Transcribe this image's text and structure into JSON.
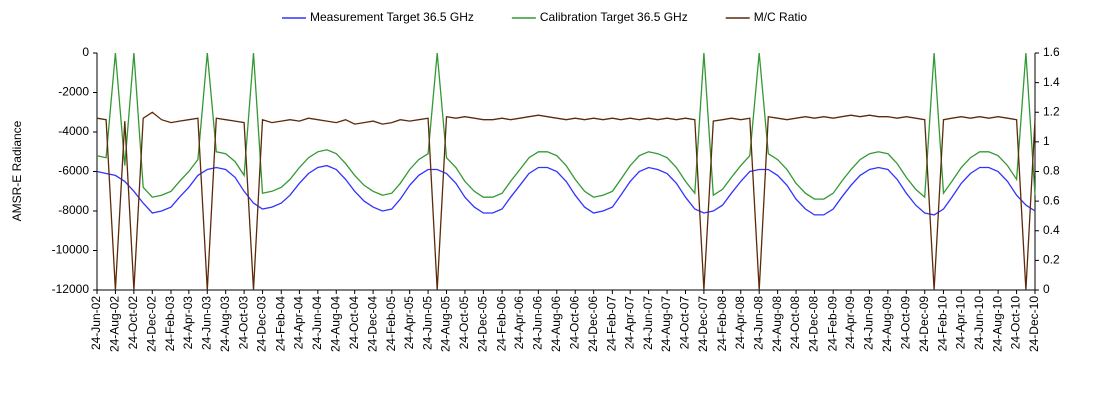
{
  "chart_data": {
    "type": "line",
    "ylabel": "AMSR-E Radiance",
    "x": [
      "2002-06-24",
      "2002-07-24",
      "2002-08-24",
      "2002-09-24",
      "2002-10-24",
      "2002-11-24",
      "2002-12-24",
      "2003-01-24",
      "2003-02-24",
      "2003-03-24",
      "2003-04-24",
      "2003-05-24",
      "2003-06-24",
      "2003-07-24",
      "2003-08-24",
      "2003-09-24",
      "2003-10-24",
      "2003-11-24",
      "2003-12-24",
      "2004-01-24",
      "2004-02-24",
      "2004-03-24",
      "2004-04-24",
      "2004-05-24",
      "2004-06-24",
      "2004-07-24",
      "2004-08-24",
      "2004-09-24",
      "2004-10-24",
      "2004-11-24",
      "2004-12-24",
      "2005-01-24",
      "2005-02-24",
      "2005-03-24",
      "2005-04-24",
      "2005-05-24",
      "2005-06-24",
      "2005-07-24",
      "2005-08-24",
      "2005-09-24",
      "2005-10-24",
      "2005-11-24",
      "2005-12-24",
      "2006-01-24",
      "2006-02-24",
      "2006-03-24",
      "2006-04-24",
      "2006-05-24",
      "2006-06-24",
      "2006-07-24",
      "2006-08-24",
      "2006-09-24",
      "2006-10-24",
      "2006-11-24",
      "2006-12-24",
      "2007-01-24",
      "2007-02-24",
      "2007-03-24",
      "2007-04-24",
      "2007-05-24",
      "2007-06-24",
      "2007-07-24",
      "2007-08-24",
      "2007-09-24",
      "2007-10-24",
      "2007-11-24",
      "2007-12-24",
      "2008-01-24",
      "2008-02-24",
      "2008-03-24",
      "2008-04-24",
      "2008-05-24",
      "2008-06-24",
      "2008-07-24",
      "2008-08-24",
      "2008-09-24",
      "2008-10-24",
      "2008-11-24",
      "2008-12-24",
      "2009-01-24",
      "2009-02-24",
      "2009-03-24",
      "2009-04-24",
      "2009-05-24",
      "2009-06-24",
      "2009-07-24",
      "2009-08-24",
      "2009-09-24",
      "2009-10-24",
      "2009-11-24",
      "2009-12-24",
      "2010-01-24",
      "2010-02-24",
      "2010-03-24",
      "2010-04-24",
      "2010-05-24",
      "2010-06-24",
      "2010-07-24",
      "2010-08-24",
      "2010-09-24",
      "2010-10-24",
      "2010-11-24",
      "2010-12-24"
    ],
    "series": [
      {
        "name": "Measurement Target 36.5 GHz",
        "color": "#3333ff",
        "values": [
          -6000,
          -6100,
          -6200,
          -6500,
          -7000,
          -7600,
          -8100,
          -8000,
          -7800,
          -7300,
          -6800,
          -6200,
          -5900,
          -5800,
          -5900,
          -6300,
          -7000,
          -7600,
          -7900,
          -7800,
          -7600,
          -7200,
          -6600,
          -6100,
          -5800,
          -5700,
          -5900,
          -6400,
          -7000,
          -7500,
          -7800,
          -8000,
          -7900,
          -7400,
          -6700,
          -6200,
          -5900,
          -5900,
          -6100,
          -6600,
          -7300,
          -7800,
          -8100,
          -8100,
          -7900,
          -7300,
          -6700,
          -6100,
          -5800,
          -5800,
          -6000,
          -6500,
          -7200,
          -7800,
          -8100,
          -8000,
          -7800,
          -7200,
          -6500,
          -6000,
          -5800,
          -5900,
          -6100,
          -6600,
          -7300,
          -7900,
          -8100,
          -8000,
          -7700,
          -7100,
          -6500,
          -6000,
          -5900,
          -5900,
          -6200,
          -6700,
          -7400,
          -7900,
          -8200,
          -8200,
          -7900,
          -7300,
          -6700,
          -6200,
          -5900,
          -5800,
          -5900,
          -6400,
          -7100,
          -7700,
          -8100,
          -8200,
          -7900,
          -7300,
          -6600,
          -6100,
          -5800,
          -5800,
          -6000,
          -6500,
          -7200,
          -7700,
          -8000
        ]
      },
      {
        "name": "Calibration Target 36.5 GHz",
        "color": "#339933",
        "values": [
          -5200,
          -5300,
          0,
          -5700,
          0,
          -6800,
          -7300,
          -7200,
          -7000,
          -6500,
          -6000,
          -5400,
          0,
          -5000,
          -5100,
          -5500,
          -6200,
          0,
          -7100,
          -7000,
          -6800,
          -6400,
          -5800,
          -5300,
          -5000,
          -4900,
          -5100,
          -5600,
          -6200,
          -6700,
          -7000,
          -7200,
          -7100,
          -6600,
          -5900,
          -5400,
          -5100,
          0,
          -5300,
          -5800,
          -6500,
          -7000,
          -7300,
          -7300,
          -7100,
          -6500,
          -5900,
          -5300,
          -5000,
          -5000,
          -5200,
          -5700,
          -6400,
          -7000,
          -7300,
          -7200,
          -7000,
          -6400,
          -5700,
          -5200,
          -5000,
          -5100,
          -5300,
          -5800,
          -6500,
          -7100,
          0,
          -7200,
          -6900,
          -6300,
          -5700,
          -5200,
          0,
          -5100,
          -5400,
          -5900,
          -6600,
          -7100,
          -7400,
          -7400,
          -7100,
          -6500,
          -5900,
          -5400,
          -5100,
          -5000,
          -5100,
          -5600,
          -6300,
          -6900,
          -7300,
          0,
          -7100,
          -6500,
          -5800,
          -5300,
          -5000,
          -5000,
          -5200,
          -5700,
          -6400,
          0,
          -7200
        ]
      },
      {
        "name": "M/C Ratio",
        "color": "#5c2a0a",
        "axis": "y2",
        "values": [
          1.16,
          1.15,
          0,
          1.14,
          0,
          1.16,
          1.2,
          1.15,
          1.13,
          1.14,
          1.15,
          1.16,
          0,
          1.16,
          1.15,
          1.14,
          1.13,
          0,
          1.15,
          1.13,
          1.14,
          1.15,
          1.14,
          1.16,
          1.15,
          1.14,
          1.13,
          1.15,
          1.12,
          1.13,
          1.14,
          1.12,
          1.13,
          1.15,
          1.14,
          1.15,
          1.16,
          0,
          1.17,
          1.16,
          1.17,
          1.16,
          1.15,
          1.15,
          1.16,
          1.15,
          1.16,
          1.17,
          1.18,
          1.17,
          1.16,
          1.15,
          1.16,
          1.15,
          1.16,
          1.15,
          1.16,
          1.15,
          1.16,
          1.15,
          1.16,
          1.15,
          1.16,
          1.15,
          1.16,
          1.15,
          0,
          1.14,
          1.15,
          1.16,
          1.15,
          1.16,
          0,
          1.17,
          1.16,
          1.15,
          1.16,
          1.17,
          1.16,
          1.17,
          1.16,
          1.17,
          1.18,
          1.17,
          1.18,
          1.17,
          1.17,
          1.16,
          1.17,
          1.16,
          1.15,
          0,
          1.15,
          1.16,
          1.17,
          1.16,
          1.17,
          1.16,
          1.17,
          1.16,
          1.15,
          0,
          1.15
        ]
      }
    ],
    "xlim": [
      "2002-06-24",
      "2010-12-24"
    ],
    "xticks": [
      {
        "value": "2002-06-24",
        "label": "24-Jun-02"
      },
      {
        "value": "2002-08-24",
        "label": "24-Aug-02"
      },
      {
        "value": "2002-10-24",
        "label": "24-Oct-02"
      },
      {
        "value": "2002-12-24",
        "label": "24-Dec-02"
      },
      {
        "value": "2003-02-24",
        "label": "24-Feb-03"
      },
      {
        "value": "2003-04-24",
        "label": "24-Apr-03"
      },
      {
        "value": "2003-06-24",
        "label": "24-Jun-03"
      },
      {
        "value": "2003-08-24",
        "label": "24-Aug-03"
      },
      {
        "value": "2003-10-24",
        "label": "24-Oct-03"
      },
      {
        "value": "2003-12-24",
        "label": "24-Dec-03"
      },
      {
        "value": "2004-02-24",
        "label": "24-Feb-04"
      },
      {
        "value": "2004-04-24",
        "label": "24-Apr-04"
      },
      {
        "value": "2004-06-24",
        "label": "24-Jun-04"
      },
      {
        "value": "2004-08-24",
        "label": "24-Aug-04"
      },
      {
        "value": "2004-10-24",
        "label": "24-Oct-04"
      },
      {
        "value": "2004-12-24",
        "label": "24-Dec-04"
      },
      {
        "value": "2005-02-24",
        "label": "24-Feb-05"
      },
      {
        "value": "2005-04-24",
        "label": "24-Apr-05"
      },
      {
        "value": "2005-06-24",
        "label": "24-Jun-05"
      },
      {
        "value": "2005-08-24",
        "label": "24-Aug-05"
      },
      {
        "value": "2005-10-24",
        "label": "24-Oct-05"
      },
      {
        "value": "2005-12-24",
        "label": "24-Dec-05"
      },
      {
        "value": "2006-02-24",
        "label": "24-Feb-06"
      },
      {
        "value": "2006-04-24",
        "label": "24-Apr-06"
      },
      {
        "value": "2006-06-24",
        "label": "24-Jun-06"
      },
      {
        "value": "2006-08-24",
        "label": "24-Aug-06"
      },
      {
        "value": "2006-10-24",
        "label": "24-Oct-06"
      },
      {
        "value": "2006-12-24",
        "label": "24-Dec-06"
      },
      {
        "value": "2007-02-24",
        "label": "24-Feb-07"
      },
      {
        "value": "2007-04-24",
        "label": "24-Apr-07"
      },
      {
        "value": "2007-06-24",
        "label": "24-Jun-07"
      },
      {
        "value": "2007-08-24",
        "label": "24-Aug-07"
      },
      {
        "value": "2007-10-24",
        "label": "24-Oct-07"
      },
      {
        "value": "2007-12-24",
        "label": "24-Dec-07"
      },
      {
        "value": "2008-02-24",
        "label": "24-Feb-08"
      },
      {
        "value": "2008-04-24",
        "label": "24-Apr-08"
      },
      {
        "value": "2008-06-24",
        "label": "24-Jun-08"
      },
      {
        "value": "2008-08-24",
        "label": "24-Aug-08"
      },
      {
        "value": "2008-10-24",
        "label": "24-Oct-08"
      },
      {
        "value": "2008-12-24",
        "label": "24-Dec-08"
      },
      {
        "value": "2009-02-24",
        "label": "24-Feb-09"
      },
      {
        "value": "2009-04-24",
        "label": "24-Apr-09"
      },
      {
        "value": "2009-06-24",
        "label": "24-Jun-09"
      },
      {
        "value": "2009-08-24",
        "label": "24-Aug-09"
      },
      {
        "value": "2009-10-24",
        "label": "24-Oct-09"
      },
      {
        "value": "2009-12-24",
        "label": "24-Dec-09"
      },
      {
        "value": "2010-02-24",
        "label": "24-Feb-10"
      },
      {
        "value": "2010-04-24",
        "label": "24-Apr-10"
      },
      {
        "value": "2010-06-24",
        "label": "24-Jun-10"
      },
      {
        "value": "2010-08-24",
        "label": "24-Aug-10"
      },
      {
        "value": "2010-10-24",
        "label": "24-Oct-10"
      },
      {
        "value": "2010-12-24",
        "label": "24-Dec-10"
      }
    ],
    "ylim": [
      -12000,
      0
    ],
    "yticks": [
      -12000,
      -10000,
      -8000,
      -6000,
      -4000,
      -2000,
      0
    ],
    "y2lim": [
      0,
      1.6
    ],
    "y2ticks": [
      0,
      0.2,
      0.4,
      0.6,
      0.8,
      1,
      1.2,
      1.4,
      1.6
    ],
    "legend": "top"
  }
}
